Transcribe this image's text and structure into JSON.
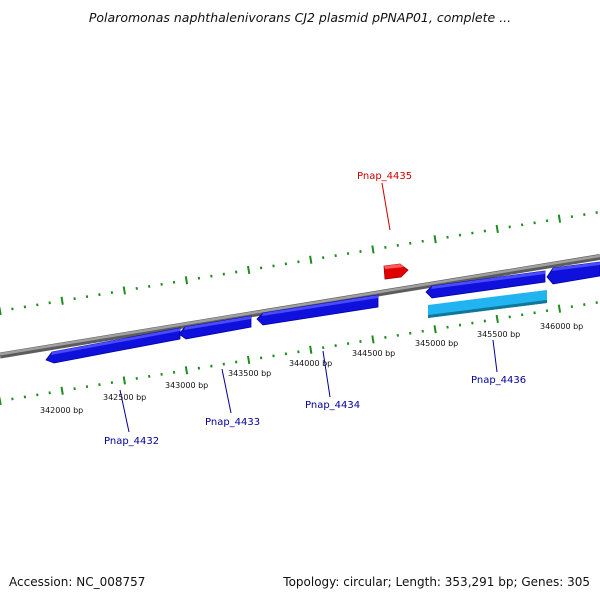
{
  "title": "Polaromonas naphthalenivorans CJ2 plasmid pPNAP01, complete ...",
  "footer": {
    "accession": "Accession: NC_008757",
    "summary": "Topology: circular; Length: 353,291 bp; Genes: 305"
  },
  "colors": {
    "backbone": "#8c8c8c",
    "tick": "#1e8c1e",
    "forward_gene": "#e00000",
    "reverse_gene": "#1010dd",
    "highlight_gene": "#22b4f0",
    "forward_label": "#cc0000",
    "reverse_label": "#000099",
    "position_label": "#111111"
  },
  "position_labels": [
    "342000 bp",
    "342500 bp",
    "343000 bp",
    "343500 bp",
    "344000 bp",
    "344500 bp",
    "345000 bp",
    "345500 bp",
    "346000 bp"
  ],
  "genes": [
    {
      "name": "Pnap_4432",
      "strand": "reverse"
    },
    {
      "name": "Pnap_4433",
      "strand": "reverse"
    },
    {
      "name": "Pnap_4434",
      "strand": "reverse"
    },
    {
      "name": "Pnap_4435",
      "strand": "forward"
    },
    {
      "name": "Pnap_4436",
      "strand": "reverse"
    }
  ]
}
